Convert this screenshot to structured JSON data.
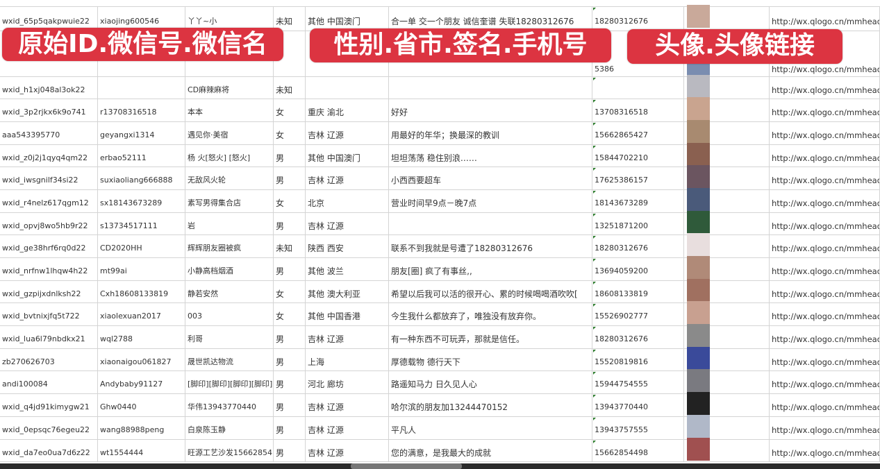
{
  "overlays": [
    "原始ID.微信号.微信名",
    "性别.省市.签名.手机号",
    "头像.头像链接"
  ],
  "avatar_colors": [
    "#c9a99a",
    "#7a8db0",
    "#b9b9c0",
    "#c9a48f",
    "#a88a70",
    "#8a6050",
    "#6b5560",
    "#4a5a7a",
    "#2f5a3a",
    "#e8dede",
    "#b08a78",
    "#a07060",
    "#c8a090",
    "#8a8a8a",
    "#3a4a9a",
    "#7a7a80",
    "#222222",
    "#b0b8c8",
    "#a05050"
  ],
  "rows": [
    [
      "wxid_65p5qakpwuie22",
      "xiaojing600546",
      "丫丫~小",
      "未知",
      "其他 中国澳门",
      "合一单 交一个朋友 诚信奎谱 失联18280312676",
      "18280312676",
      "http://wx.qlogo.cn/mmhead"
    ],
    [
      "",
      "",
      "",
      "",
      "",
      "",
      "5386",
      "http://wx.qlogo.cn/mmhead"
    ],
    [
      "wxid_h1xj048al3ok22",
      "",
      "CD麻辣麻将",
      "未知",
      "",
      "",
      "",
      "http://wx.qlogo.cn/mmhead"
    ],
    [
      "wxid_3p2rjkx6k9o741",
      "r13708316518",
      "本本",
      "女",
      "重庆 渝北",
      "好好",
      "13708316518",
      "http://wx.qlogo.cn/mmhead"
    ],
    [
      "aaa543395770",
      "geyangxi1314",
      "遇见你·美宿",
      "女",
      "吉林 辽源",
      "用最好的年华；换最深的教训",
      "15662865427",
      "http://wx.qlogo.cn/mmhead"
    ],
    [
      "wxid_z0j2j1qyq4qm22",
      "erbao52111",
      "杨 火[怒火] [怒火]",
      "男",
      "其他 中国澳门",
      "坦坦荡荡 稳住别浪……",
      "15844702210",
      "http://wx.qlogo.cn/mmhead"
    ],
    [
      "wxid_iwsgnilf34si22",
      "suxiaoliang666888",
      "无敌风火轮",
      "男",
      "吉林 辽源",
      "小西西要超车",
      "17625386157",
      "http://wx.qlogo.cn/mmhead"
    ],
    [
      "wxid_r4nelz617qgm12",
      "sx18143673289",
      "素写男得集合店",
      "女",
      "北京",
      "营业时间早9点－晚7点",
      "18143673289",
      "http://wx.qlogo.cn/mmhead"
    ],
    [
      "wxid_opvj8wo5hb9r22",
      "s13734517111",
      "岩",
      "男",
      "吉林 辽源",
      "",
      "13251871200",
      "http://wx.qlogo.cn/mmhead"
    ],
    [
      "wxid_ge38hrf6rq0d22",
      "CD2020HH",
      "辉辉朋友圈被疯",
      "未知",
      "陕西 西安",
      "联系不到我就是号遭了18280312676",
      "18280312676",
      "http://wx.qlogo.cn/mmhead"
    ],
    [
      "wxid_nrfnw1lhqw4h22",
      "mt99ai",
      "小静高档烟酒",
      "男",
      "其他 波兰",
      "朋友[圈] 疯了有事丝,,",
      "13694059200",
      "http://wx.qlogo.cn/mmhead"
    ],
    [
      "wxid_gzpijxdnlksh22",
      "Cxh18608133819",
      "静若安然",
      "女",
      "其他 澳大利亚",
      "希望以后我可以活的很开心、累的时候喝喝酒吹吹[",
      "18608133819",
      "http://wx.qlogo.cn/mmhead"
    ],
    [
      "wxid_bvtnixjfq5t722",
      "xiaolexuan2017",
      "003",
      "女",
      "其他 中国香港",
      "今生我什么都放弃了，唯独没有放弃你。",
      "15526902777",
      "http://wx.qlogo.cn/mmhead"
    ],
    [
      "wxid_lua6l79nbdkx21",
      "wql2788",
      "利哥",
      "男",
      "吉林 辽源",
      "有一种东西不可玩弄，那就是信任。",
      "18280312676",
      "http://wx.qlogo.cn/mmhead"
    ],
    [
      "zb270626703",
      "xiaonaigou061827",
      "晟世凯达物流",
      "男",
      "上海",
      "厚德载物 德行天下",
      "15520819816",
      "http://wx.qlogo.cn/mmhead"
    ],
    [
      "andi100084",
      "Andybaby91127",
      "[脚印][脚印][脚印][脚印]",
      "男",
      "河北 廊坊",
      "路遥知马力 日久见人心",
      "15944754555",
      "http://wx.qlogo.cn/mmhead"
    ],
    [
      "wxid_q4jd91kimygw21",
      "Ghw0440",
      "华伟13943770440",
      "男",
      "吉林 辽源",
      "哈尔滨的朋友加13244470152",
      "13943770440",
      "http://wx.qlogo.cn/mmhead"
    ],
    [
      "wxid_0epsqc76egeu22",
      "wang88988peng",
      "白泉陈玉静",
      "男",
      "吉林 辽源",
      "平凡人",
      "13943757555",
      "http://wx.qlogo.cn/mmhead"
    ],
    [
      "wxid_da7eo0ua7d6z22",
      "wt1554444",
      "旺源工艺沙发15662854",
      "男",
      "吉林 辽源",
      "您的满意，是我最大的成就",
      "15662854498",
      "http://wx.qlogo.cn/mmhead"
    ]
  ]
}
